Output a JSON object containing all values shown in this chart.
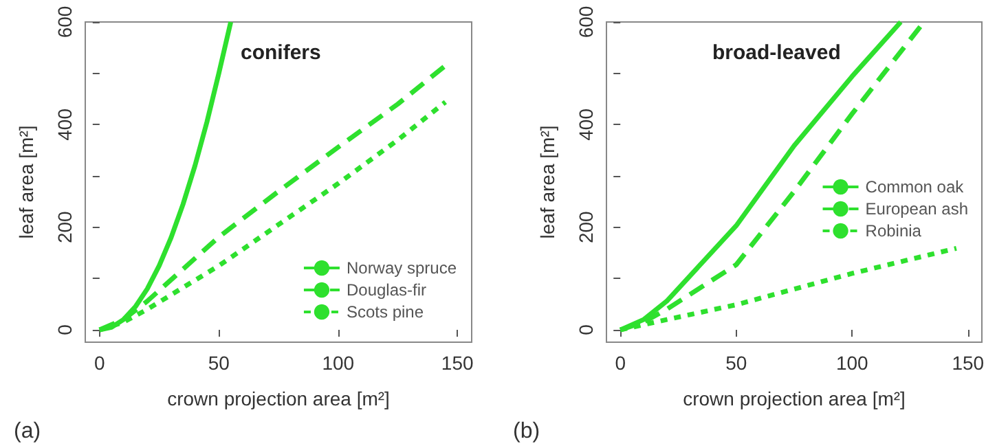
{
  "chart_data": [
    {
      "type": "line",
      "title": "conifers",
      "xlabel": "crown projection area [m²]",
      "ylabel": "leaf area [m²]",
      "annotations": [
        "(a)"
      ],
      "series": [
        {
          "name": "Norway spruce",
          "color": "#2ee02e",
          "line_style": "solid",
          "x": [
            0,
            5,
            10,
            15,
            20,
            25,
            30,
            35,
            40,
            45,
            50,
            55
          ],
          "values": [
            0,
            5,
            20,
            45,
            80,
            125,
            180,
            245,
            320,
            405,
            500,
            600
          ]
        },
        {
          "name": "Douglas-fir",
          "color": "#2ee02e",
          "line_style": "dashed",
          "x": [
            0,
            10,
            20,
            50,
            75,
            100,
            125,
            145
          ],
          "values": [
            0,
            20,
            56,
            181,
            270,
            356,
            440,
            515
          ]
        },
        {
          "name": "Scots pine",
          "color": "#2ee02e",
          "line_style": "dotted",
          "x": [
            0,
            10,
            20,
            50,
            75,
            100,
            125,
            145
          ],
          "values": [
            0,
            15,
            40,
            125,
            205,
            285,
            370,
            444
          ]
        }
      ],
      "xlim": [
        -6,
        156
      ],
      "xticks": [
        0,
        50,
        100,
        150
      ],
      "ylim": [
        -24,
        600
      ],
      "yticks": [
        0,
        {
          "value": 100,
          "label": null
        },
        200,
        {
          "value": 300,
          "label": null
        },
        400,
        {
          "value": 500,
          "label": null
        },
        600
      ],
      "grid": false,
      "legend": "bottom right"
    },
    {
      "type": "line",
      "title": "broad-leaved",
      "xlabel": "crown projection area [m²]",
      "ylabel": "leaf area [m²]",
      "annotations": [
        "(b)"
      ],
      "series": [
        {
          "name": "Common oak",
          "color": "#2ee02e",
          "line_style": "solid",
          "x": [
            0,
            10,
            20,
            50,
            75,
            100,
            121
          ],
          "values": [
            0,
            20,
            56,
            203,
            359,
            494,
            600
          ]
        },
        {
          "name": "European ash",
          "color": "#2ee02e",
          "line_style": "dashed",
          "x": [
            0,
            10,
            20,
            50,
            75,
            100,
            131
          ],
          "values": [
            0,
            15,
            40,
            127,
            270,
            421,
            600
          ]
        },
        {
          "name": "Robinia",
          "color": "#2ee02e",
          "line_style": "dotted",
          "x": [
            0,
            10,
            20,
            50,
            100,
            145
          ],
          "values": [
            0,
            10,
            20,
            49,
            110,
            159
          ]
        }
      ],
      "xlim": [
        -6,
        156
      ],
      "xticks": [
        0,
        50,
        100,
        150
      ],
      "ylim": [
        -24,
        600
      ],
      "yticks": [
        0,
        {
          "value": 100,
          "label": null
        },
        200,
        {
          "value": 300,
          "label": null
        },
        400,
        {
          "value": 500,
          "label": null
        },
        600
      ],
      "grid": false,
      "legend": "right"
    }
  ]
}
